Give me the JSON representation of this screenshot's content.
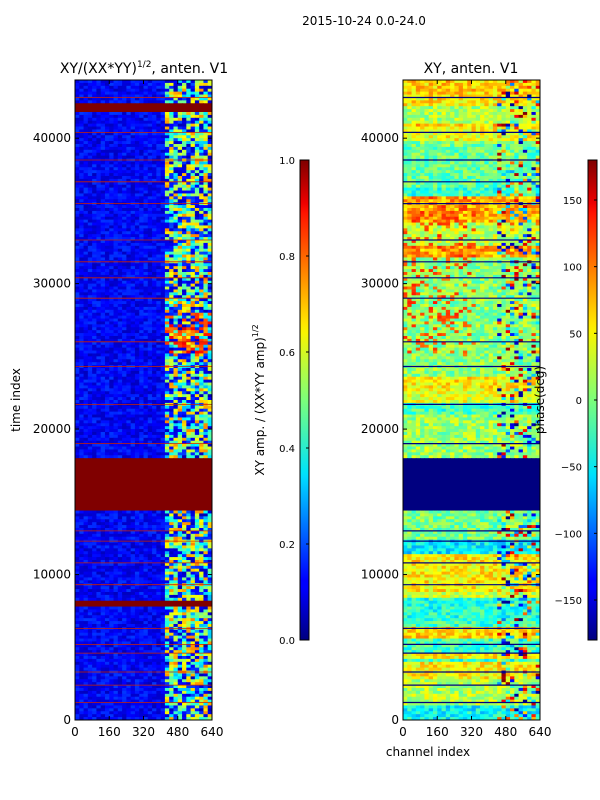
{
  "suptitle": "2015-10-24 0.0-24.0",
  "chart_data": [
    {
      "type": "heatmap",
      "title": "XY/(XX*YY)",
      "title_exponent": "1/2",
      "title_suffix": ", anten. V1",
      "xlabel": "",
      "ylabel": "time index",
      "xlim": [
        0,
        640
      ],
      "ylim": [
        0,
        44000
      ],
      "xticks": [
        0,
        160,
        320,
        480,
        640
      ],
      "yticks": [
        0,
        10000,
        20000,
        30000,
        40000
      ],
      "colorbar": {
        "label": "XY amp. / (XX*YY amp)",
        "label_exponent": "1/2",
        "range": [
          0.0,
          1.0
        ],
        "ticks": [
          "0.0",
          "0.2",
          "0.4",
          "0.6",
          "0.8",
          "1.0"
        ],
        "colormap": "jet"
      },
      "features": [
        {
          "kind": "saturated_band",
          "time_range": [
            14500,
            18000
          ],
          "value": 1.0
        },
        {
          "kind": "saturated_band",
          "time_range": [
            41800,
            42300
          ],
          "value": 1.0
        },
        {
          "kind": "saturated_band",
          "time_range": [
            7800,
            8100
          ],
          "value": 1.0
        },
        {
          "kind": "bright_channels",
          "channel_range": [
            420,
            640
          ],
          "value_range": [
            0.3,
            0.8
          ]
        },
        {
          "kind": "background",
          "value_range": [
            0.0,
            0.15
          ]
        }
      ]
    },
    {
      "type": "heatmap",
      "title": "XY, anten. V1",
      "xlabel": "channel index",
      "ylabel": "",
      "xlim": [
        0,
        640
      ],
      "ylim": [
        0,
        44000
      ],
      "xticks": [
        0,
        160,
        320,
        480,
        640
      ],
      "yticks": [
        0,
        10000,
        20000,
        30000,
        40000
      ],
      "colorbar": {
        "label": "phase(deg)",
        "range": [
          -180,
          180
        ],
        "ticks": [
          "−150",
          "−100",
          "−50",
          "0",
          "50",
          "100",
          "150"
        ],
        "colormap": "jet"
      },
      "features": [
        {
          "kind": "saturated_band",
          "time_range": [
            14500,
            18000
          ],
          "value": -180
        },
        {
          "kind": "background",
          "value_range": [
            -60,
            80
          ]
        }
      ]
    }
  ]
}
